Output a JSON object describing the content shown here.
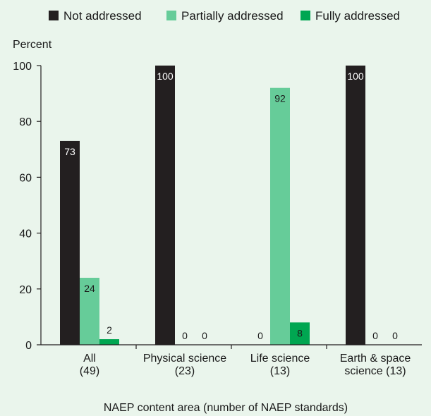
{
  "chart_data": {
    "type": "bar",
    "ylabel": "Percent",
    "xlabel": "NAEP content area (number of NAEP standards)",
    "ylim": [
      0,
      100
    ],
    "yticks": [
      0,
      20,
      40,
      60,
      80,
      100
    ],
    "legend_position": "top",
    "categories": [
      [
        "All",
        "(49)"
      ],
      [
        "Physical science",
        "(23)"
      ],
      [
        "Life science",
        "(13)"
      ],
      [
        "Earth & space",
        "science (13)"
      ]
    ],
    "series": [
      {
        "name": "Not addressed",
        "color": "#231f20",
        "label_color": "#ffffff",
        "values": [
          73,
          100,
          0,
          100
        ]
      },
      {
        "name": "Partially addressed",
        "color": "#66cc99",
        "label_color": "#1a1a1a",
        "values": [
          24,
          0,
          92,
          0
        ]
      },
      {
        "name": "Fully addressed",
        "color": "#00a651",
        "label_color": "#1a1a1a",
        "values": [
          2,
          0,
          8,
          0
        ]
      }
    ]
  }
}
